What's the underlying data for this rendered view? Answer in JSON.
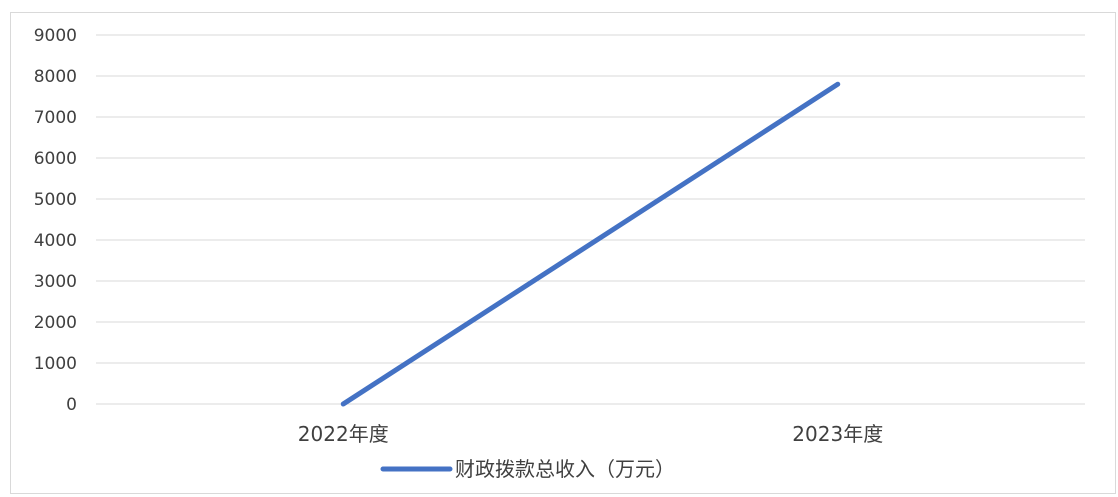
{
  "chart_data": {
    "type": "line",
    "categories": [
      "2022年度",
      "2023年度"
    ],
    "series": [
      {
        "name": "财政拨款总收入（万元）",
        "values": [
          0,
          7800
        ],
        "color": "#4472c4"
      }
    ],
    "ylim": [
      0,
      9000
    ],
    "yticks": [
      0,
      1000,
      2000,
      3000,
      4000,
      5000,
      6000,
      7000,
      8000,
      9000
    ],
    "grid": true,
    "legend": "bottom",
    "gridColor": "#d9d9d9"
  }
}
